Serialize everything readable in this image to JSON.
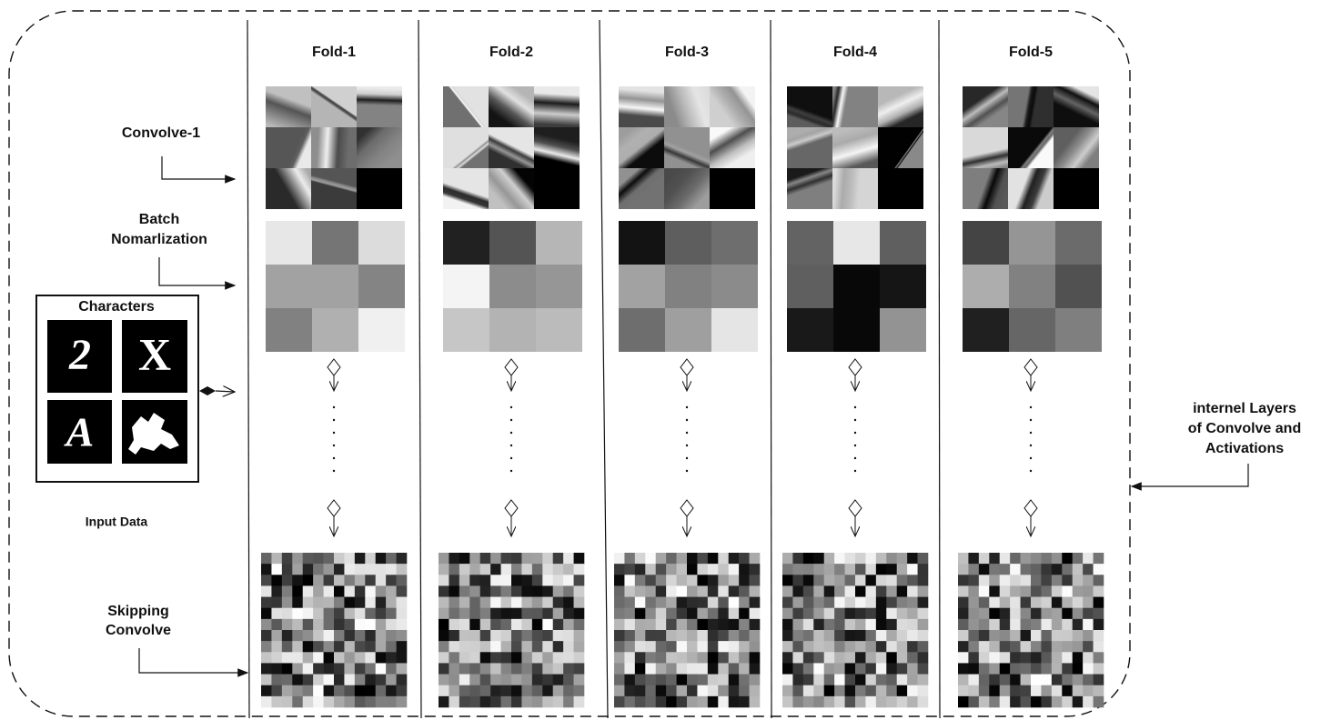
{
  "folds": [
    "Fold-1",
    "Fold-2",
    "Fold-3",
    "Fold-4",
    "Fold-5"
  ],
  "labels": {
    "convolve": "Convolve-1",
    "batch_norm": [
      "Batch",
      "Nomarlization"
    ],
    "skipping": [
      "Skipping",
      "Convolve"
    ],
    "internal_layers": [
      "internel Layers",
      "of Convolve and",
      "Activations"
    ]
  },
  "input": {
    "title": "Characters",
    "caption": "Input Data",
    "glyphs": [
      "2",
      "X",
      "A"
    ]
  }
}
